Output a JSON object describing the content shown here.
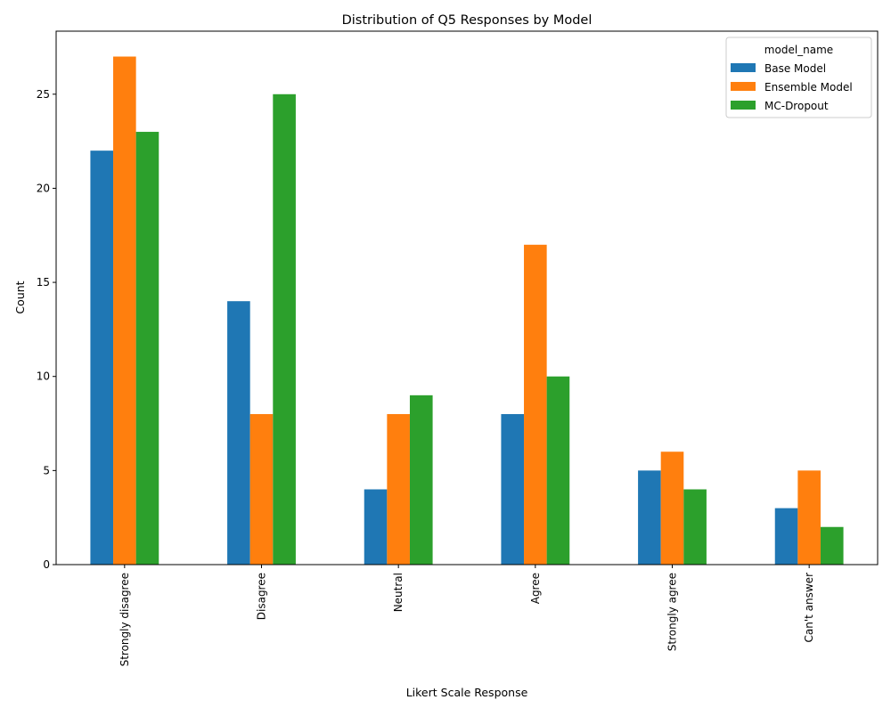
{
  "chart_data": {
    "type": "bar",
    "title": "Distribution of Q5 Responses by Model",
    "xlabel": "Likert Scale Response",
    "ylabel": "Count",
    "categories": [
      "Strongly disagree",
      "Disagree",
      "Neutral",
      "Agree",
      "Strongly agree",
      "Can't answer"
    ],
    "series": [
      {
        "name": "Base Model",
        "color": "#1f77b4",
        "values": [
          22,
          14,
          4,
          8,
          5,
          3
        ]
      },
      {
        "name": "Ensemble Model",
        "color": "#ff7f0e",
        "values": [
          27,
          8,
          8,
          17,
          6,
          5
        ]
      },
      {
        "name": "MC-Dropout",
        "color": "#2ca02c",
        "values": [
          23,
          25,
          9,
          10,
          4,
          2
        ]
      }
    ],
    "ylim": [
      0,
      28.35
    ],
    "yticks": [
      0,
      5,
      10,
      15,
      20,
      25
    ],
    "grid": false,
    "legend": {
      "title": "model_name",
      "position": "top-right"
    }
  }
}
